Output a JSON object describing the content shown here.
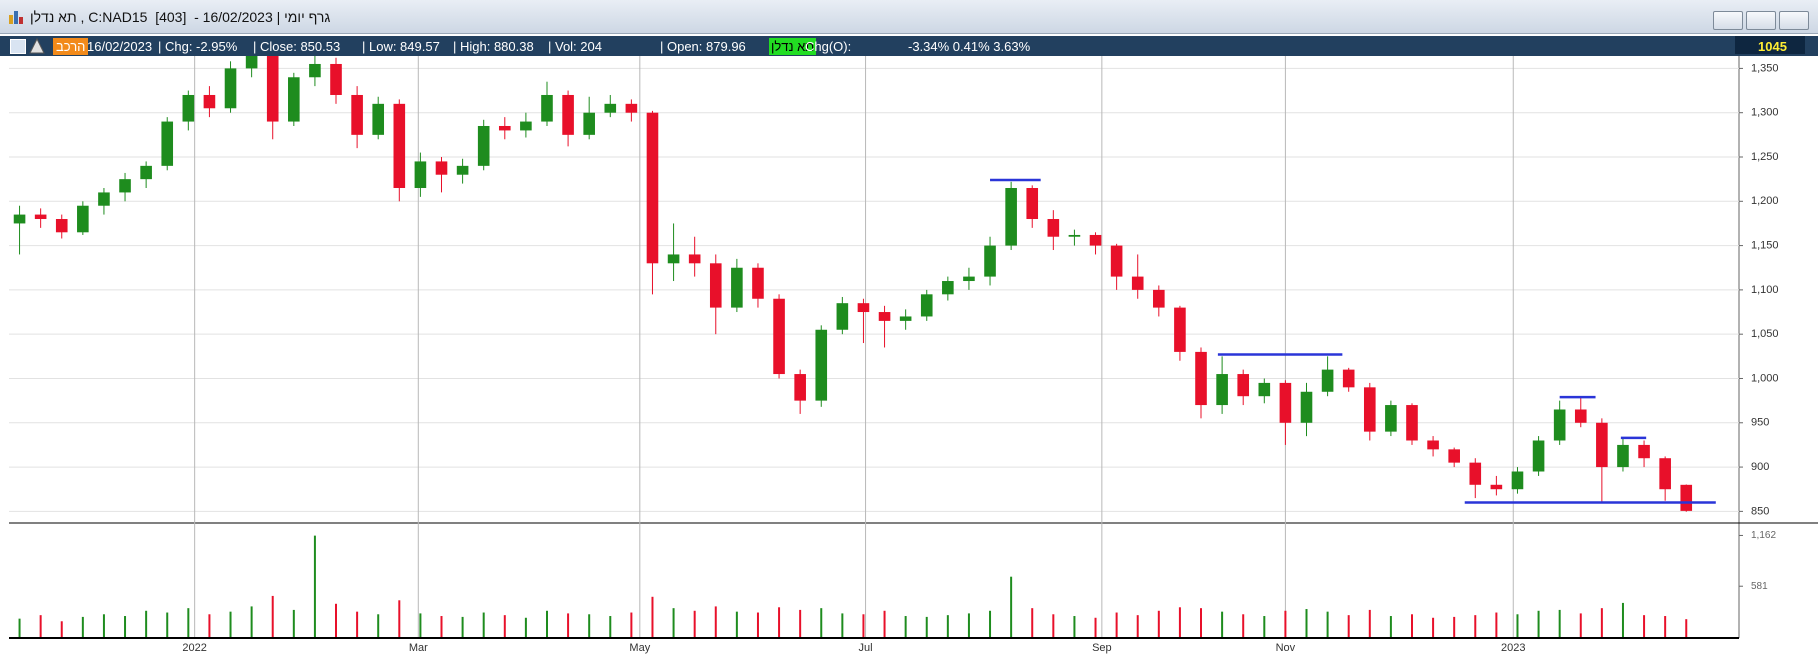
{
  "window": {
    "title": "תא נדלן , C:NAD15  [403]  - 16/02/2023 | גרף יומי"
  },
  "info_bar": {
    "composition": "הרכב",
    "date": "16/02/2023",
    "chg": "| Chg: -2.95%",
    "close": "| Close: 850.53",
    "low": "| Low: 849.57",
    "high": "| High: 880.38",
    "vol": "| Vol: 204",
    "open": "| Open: 879.96",
    "symbol": "תא נדלן",
    "chg_o_label": "Chg(O):",
    "chg_o_values": "-3.34% 0.41% 3.63%",
    "counter": "1045"
  },
  "chart_data": {
    "type": "candlestick",
    "up_color": "#1e8c1e",
    "down_color": "#e8102a",
    "line_color": "#2a35d8",
    "xlim": [
      -0.5,
      81.5
    ],
    "xticks": [
      {
        "value": 8.3,
        "label": "2022"
      },
      {
        "value": 18.9,
        "label": "Mar"
      },
      {
        "value": 29.4,
        "label": "May"
      },
      {
        "value": 40.1,
        "label": "Jul"
      },
      {
        "value": 51.3,
        "label": "Sep"
      },
      {
        "value": 60.0,
        "label": "Nov"
      },
      {
        "value": 70.8,
        "label": "2023"
      }
    ],
    "ylim": [
      838,
      1364
    ],
    "yticks": [
      850,
      900,
      950,
      {
        "value": 1000,
        "label": "1,000"
      },
      {
        "value": 1050,
        "label": "1,050"
      },
      {
        "value": 1100,
        "label": "1,100"
      },
      {
        "value": 1150,
        "label": "1,150"
      },
      {
        "value": 1200,
        "label": "1,200"
      },
      {
        "value": 1250,
        "label": "1,250"
      },
      {
        "value": 1300,
        "label": "1,300"
      },
      {
        "value": 1350,
        "label": "1,350"
      }
    ],
    "volume_ylim": [
      0,
      1270
    ],
    "volume_yticks": [
      581,
      {
        "value": 1162,
        "label": "1,162"
      }
    ],
    "grid": true,
    "candles": [
      [
        1175,
        1195,
        1140,
        1185
      ],
      [
        1185,
        1192,
        1170,
        1180
      ],
      [
        1180,
        1185,
        1158,
        1165
      ],
      [
        1165,
        1200,
        1162,
        1195
      ],
      [
        1195,
        1215,
        1185,
        1210
      ],
      [
        1210,
        1232,
        1200,
        1225
      ],
      [
        1225,
        1245,
        1215,
        1240
      ],
      [
        1240,
        1295,
        1235,
        1290
      ],
      [
        1290,
        1325,
        1280,
        1320
      ],
      [
        1320,
        1330,
        1295,
        1305
      ],
      [
        1305,
        1358,
        1300,
        1350
      ],
      [
        1350,
        1370,
        1340,
        1365
      ],
      [
        1365,
        1368,
        1270,
        1290
      ],
      [
        1290,
        1345,
        1285,
        1340
      ],
      [
        1340,
        1370,
        1330,
        1355
      ],
      [
        1355,
        1362,
        1310,
        1320
      ],
      [
        1320,
        1330,
        1260,
        1275
      ],
      [
        1275,
        1318,
        1270,
        1310
      ],
      [
        1310,
        1315,
        1200,
        1215
      ],
      [
        1215,
        1255,
        1205,
        1245
      ],
      [
        1245,
        1250,
        1210,
        1230
      ],
      [
        1230,
        1248,
        1220,
        1240
      ],
      [
        1240,
        1292,
        1235,
        1285
      ],
      [
        1285,
        1295,
        1270,
        1280
      ],
      [
        1280,
        1300,
        1272,
        1290
      ],
      [
        1290,
        1335,
        1285,
        1320
      ],
      [
        1320,
        1325,
        1262,
        1275
      ],
      [
        1275,
        1318,
        1270,
        1300
      ],
      [
        1300,
        1320,
        1295,
        1310
      ],
      [
        1310,
        1315,
        1290,
        1300
      ],
      [
        1300,
        1302,
        1095,
        1130
      ],
      [
        1130,
        1175,
        1110,
        1140
      ],
      [
        1140,
        1160,
        1115,
        1130
      ],
      [
        1130,
        1140,
        1050,
        1080
      ],
      [
        1080,
        1135,
        1075,
        1125
      ],
      [
        1125,
        1130,
        1080,
        1090
      ],
      [
        1090,
        1095,
        1000,
        1005
      ],
      [
        1005,
        1010,
        960,
        975
      ],
      [
        975,
        1060,
        968,
        1055
      ],
      [
        1055,
        1092,
        1050,
        1085
      ],
      [
        1085,
        1090,
        1040,
        1075
      ],
      [
        1075,
        1082,
        1035,
        1065
      ],
      [
        1065,
        1078,
        1055,
        1070
      ],
      [
        1070,
        1100,
        1065,
        1095
      ],
      [
        1095,
        1115,
        1088,
        1110
      ],
      [
        1110,
        1125,
        1100,
        1115
      ],
      [
        1115,
        1160,
        1105,
        1150
      ],
      [
        1150,
        1222,
        1145,
        1215
      ],
      [
        1215,
        1218,
        1170,
        1180
      ],
      [
        1180,
        1190,
        1145,
        1160
      ],
      [
        1160,
        1168,
        1150,
        1162
      ],
      [
        1162,
        1165,
        1140,
        1150
      ],
      [
        1150,
        1152,
        1100,
        1115
      ],
      [
        1115,
        1140,
        1090,
        1100
      ],
      [
        1100,
        1105,
        1070,
        1080
      ],
      [
        1080,
        1082,
        1020,
        1030
      ],
      [
        1030,
        1035,
        955,
        970
      ],
      [
        970,
        1025,
        960,
        1005
      ],
      [
        1005,
        1010,
        970,
        980
      ],
      [
        980,
        1000,
        972,
        995
      ],
      [
        995,
        998,
        925,
        950
      ],
      [
        950,
        995,
        935,
        985
      ],
      [
        985,
        1025,
        980,
        1010
      ],
      [
        1010,
        1012,
        985,
        990
      ],
      [
        990,
        995,
        930,
        940
      ],
      [
        940,
        975,
        935,
        970
      ],
      [
        970,
        972,
        925,
        930
      ],
      [
        930,
        935,
        912,
        920
      ],
      [
        920,
        922,
        900,
        905
      ],
      [
        905,
        910,
        865,
        880
      ],
      [
        880,
        890,
        868,
        875
      ],
      [
        875,
        900,
        870,
        895
      ],
      [
        895,
        935,
        890,
        930
      ],
      [
        930,
        975,
        925,
        965
      ],
      [
        965,
        978,
        945,
        950
      ],
      [
        950,
        955,
        860,
        900
      ],
      [
        900,
        932,
        895,
        925
      ],
      [
        925,
        930,
        900,
        910
      ],
      [
        910,
        912,
        862,
        875
      ],
      [
        879.96,
        880.38,
        849.57,
        850.53
      ]
    ],
    "volumes": [
      210,
      250,
      180,
      230,
      260,
      240,
      300,
      280,
      330,
      260,
      290,
      350,
      470,
      310,
      1160,
      380,
      290,
      260,
      420,
      270,
      240,
      230,
      280,
      250,
      220,
      300,
      270,
      260,
      240,
      280,
      460,
      330,
      300,
      350,
      290,
      280,
      340,
      310,
      330,
      270,
      260,
      300,
      240,
      230,
      250,
      270,
      300,
      690,
      330,
      260,
      240,
      220,
      280,
      250,
      300,
      340,
      330,
      290,
      260,
      240,
      300,
      320,
      290,
      250,
      310,
      240,
      260,
      220,
      230,
      250,
      280,
      260,
      300,
      310,
      270,
      330,
      390,
      250,
      240,
      204
    ],
    "levels": [
      {
        "y": 1224,
        "x": [
          46,
          48.4
        ]
      },
      {
        "y": 1027,
        "x": [
          56.8,
          62.7
        ]
      },
      {
        "y": 979,
        "x": [
          73,
          74.7
        ]
      },
      {
        "y": 933,
        "x": [
          75.9,
          77.1
        ]
      },
      {
        "y": 860,
        "x": [
          68.5,
          80.4
        ]
      }
    ]
  }
}
